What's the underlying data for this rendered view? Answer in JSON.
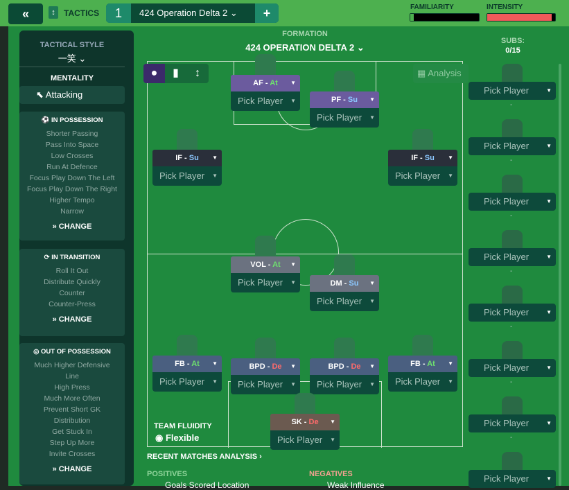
{
  "header": {
    "tab_number": "1",
    "tactic_name": "424 Operation Delta 2",
    "tactics_label": "TACTICS",
    "familiarity_label": "FAMILIARITY",
    "intensity_label": "INTENSITY",
    "familiarity": 0.05,
    "intensity": 0.95
  },
  "left": {
    "tactical_style_label": "TACTICAL STYLE",
    "tactical_style": "一笑",
    "mentality_label": "MENTALITY",
    "mentality": "Attacking",
    "in_possession": {
      "title": "IN POSSESSION",
      "items": [
        "Shorter Passing",
        "Pass Into Space",
        "Low Crosses",
        "Run At Defence",
        "Focus Play Down The Left",
        "Focus Play Down The Right",
        "Higher Tempo",
        "Narrow"
      ]
    },
    "in_transition": {
      "title": "IN TRANSITION",
      "items": [
        "Roll It Out",
        "Distribute Quickly",
        "Counter",
        "Counter-Press"
      ]
    },
    "out_of_possession": {
      "title": "OUT OF POSSESSION",
      "items": [
        "Much Higher Defensive",
        "Line",
        "High Press",
        "Much More Often",
        "Prevent Short GK",
        "Distribution",
        "Get Stuck In",
        "Step Up More",
        "Invite Crosses"
      ]
    },
    "change_label": "CHANGE"
  },
  "formation": {
    "label": "FORMATION",
    "name": "424 OPERATION DELTA 2",
    "analysis": "Analysis"
  },
  "subs": {
    "label": "SUBS:",
    "count": "0/15",
    "pick": "Pick Player"
  },
  "players": [
    {
      "role": "AF",
      "duty": "At",
      "pick": "Pick Player"
    },
    {
      "role": "PF",
      "duty": "Su",
      "pick": "Pick Player"
    },
    {
      "role": "IF",
      "duty": "Su",
      "pick": "Pick Player"
    },
    {
      "role": "IF",
      "duty": "Su",
      "pick": "Pick Player"
    },
    {
      "role": "VOL",
      "duty": "At",
      "pick": "Pick Player"
    },
    {
      "role": "DM",
      "duty": "Su",
      "pick": "Pick Player"
    },
    {
      "role": "FB",
      "duty": "At",
      "pick": "Pick Player"
    },
    {
      "role": "BPD",
      "duty": "De",
      "pick": "Pick Player"
    },
    {
      "role": "BPD",
      "duty": "De",
      "pick": "Pick Player"
    },
    {
      "role": "FB",
      "duty": "At",
      "pick": "Pick Player"
    },
    {
      "role": "SK",
      "duty": "De",
      "pick": "Pick Player"
    }
  ],
  "fluidity": {
    "label": "TEAM FLUIDITY",
    "value": "Flexible"
  },
  "analysis": {
    "title": "RECENT MATCHES ANALYSIS",
    "positives": "POSITIVES",
    "positive_item": "Goals Scored Location",
    "negatives": "NEGATIVES",
    "negative_item": "Weak Influence"
  }
}
